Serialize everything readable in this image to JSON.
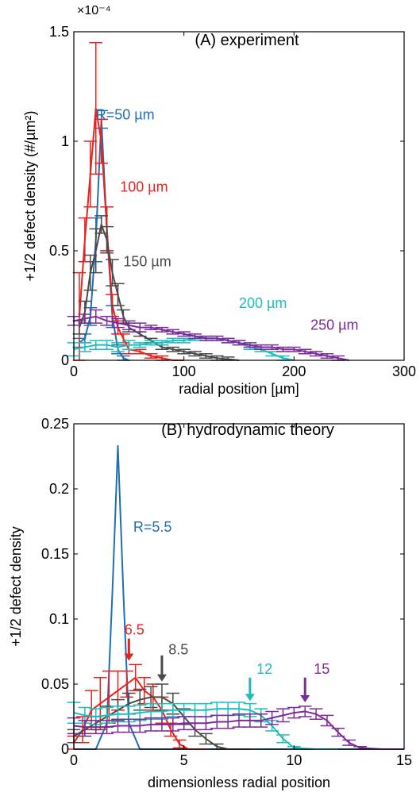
{
  "chart_data": [
    {
      "type": "line",
      "title": "(A) experiment",
      "xlabel": "radial position [µm]",
      "ylabel": "+1/2 defect density (#/µm²)",
      "exponent": "×10⁻⁴",
      "xlim": [
        0,
        300
      ],
      "ylim": [
        0,
        1.5
      ],
      "xticks": [
        0,
        100,
        200,
        300
      ],
      "xtick_labels": [
        "0",
        "100",
        "200",
        "300"
      ],
      "yticks": [
        0,
        0.5,
        1,
        1.5
      ],
      "ytick_labels": [
        "0",
        "0.5",
        "1",
        "1.5"
      ],
      "grid": false,
      "error_bars": true,
      "series": [
        {
          "name": "R=50 µm",
          "color": "#1f6fb5",
          "x": [
            5,
            10,
            15,
            20,
            25,
            30,
            35,
            40,
            45,
            50
          ],
          "y": [
            0.08,
            0.1,
            0.2,
            0.55,
            1.1,
            0.6,
            0.2,
            0.05,
            0.01,
            0
          ],
          "err": [
            0.02,
            0.02,
            0.04,
            0.1,
            0.04,
            0.1,
            0.05,
            0.02,
            0.01,
            0
          ]
        },
        {
          "name": "100 µm",
          "color": "#e8221e",
          "x": [
            5,
            10,
            15,
            20,
            25,
            30,
            35,
            40,
            45,
            50,
            60,
            70,
            80,
            90,
            100
          ],
          "y": [
            0.2,
            0.55,
            0.85,
            1.15,
            1.0,
            0.6,
            0.25,
            0.15,
            0.1,
            0.05,
            0.04,
            0.02,
            0.01,
            0,
            0
          ],
          "err": [
            0.2,
            0.1,
            0.15,
            0.3,
            0.1,
            0.1,
            0.05,
            0.03,
            0.02,
            0.02,
            0.01,
            0.01,
            0.01,
            0,
            0
          ]
        },
        {
          "name": "150 µm",
          "color": "#4a4a4a",
          "x": [
            5,
            10,
            15,
            20,
            25,
            30,
            35,
            40,
            45,
            50,
            60,
            70,
            80,
            90,
            100,
            110,
            120,
            130,
            140,
            150
          ],
          "y": [
            0.15,
            0.22,
            0.4,
            0.5,
            0.62,
            0.55,
            0.4,
            0.3,
            0.2,
            0.15,
            0.12,
            0.09,
            0.06,
            0.05,
            0.04,
            0.03,
            0.02,
            0.01,
            0.005,
            0
          ],
          "err": [
            0.03,
            0.05,
            0.08,
            0.1,
            0.04,
            0.06,
            0.06,
            0.05,
            0.03,
            0.02,
            0.01,
            0.01,
            0.01,
            0.01,
            0.01,
            0.01,
            0.01,
            0.01,
            0.01,
            0
          ]
        },
        {
          "name": "200 µm",
          "color": "#1fbcbc",
          "x": [
            0,
            10,
            20,
            30,
            40,
            50,
            60,
            70,
            80,
            90,
            100,
            110,
            120,
            130,
            140,
            150,
            160,
            170,
            180,
            190,
            200
          ],
          "y": [
            0.05,
            0.06,
            0.07,
            0.07,
            0.06,
            0.07,
            0.07,
            0.08,
            0.08,
            0.09,
            0.09,
            0.1,
            0.1,
            0.1,
            0.09,
            0.08,
            0.06,
            0.05,
            0.03,
            0.01,
            0
          ],
          "err": [
            0.03,
            0.02,
            0.02,
            0.02,
            0.02,
            0.02,
            0.01,
            0.01,
            0.01,
            0.01,
            0.01,
            0.01,
            0.01,
            0.01,
            0.01,
            0.01,
            0.01,
            0.01,
            0.01,
            0.01,
            0
          ]
        },
        {
          "name": "250 µm",
          "color": "#7b2b9a",
          "x": [
            0,
            10,
            20,
            30,
            40,
            50,
            60,
            70,
            80,
            90,
            100,
            110,
            120,
            130,
            140,
            150,
            160,
            170,
            180,
            190,
            200,
            210,
            220,
            230,
            240,
            250
          ],
          "y": [
            0.18,
            0.19,
            0.2,
            0.18,
            0.17,
            0.16,
            0.15,
            0.15,
            0.14,
            0.13,
            0.12,
            0.11,
            0.1,
            0.1,
            0.09,
            0.08,
            0.07,
            0.06,
            0.06,
            0.05,
            0.05,
            0.04,
            0.03,
            0.02,
            0.01,
            0
          ],
          "err": [
            0.02,
            0.02,
            0.03,
            0.02,
            0.02,
            0.02,
            0.02,
            0.01,
            0.01,
            0.01,
            0.01,
            0.01,
            0.01,
            0.01,
            0.01,
            0.01,
            0.01,
            0.01,
            0.01,
            0.01,
            0.01,
            0.01,
            0.01,
            0.01,
            0.01,
            0
          ]
        }
      ],
      "labels": [
        {
          "text": "R=50 µm",
          "color": "#1f6fb5",
          "x": 20,
          "y": 1.1
        },
        {
          "text": "100 µm",
          "color": "#e8221e",
          "x": 42,
          "y": 0.77
        },
        {
          "text": "150 µm",
          "color": "#4a4a4a",
          "x": 45,
          "y": 0.43
        },
        {
          "text": "200 µm",
          "color": "#1fbcbc",
          "x": 150,
          "y": 0.24
        },
        {
          "text": "250 µm",
          "color": "#7b2b9a",
          "x": 215,
          "y": 0.14
        }
      ]
    },
    {
      "type": "line",
      "title": "(B) hydrodynamic theory",
      "xlabel": "dimensionless radial position",
      "ylabel": "+1/2 defect density",
      "xlim": [
        0,
        15
      ],
      "ylim": [
        0,
        0.25
      ],
      "xticks": [
        0,
        5,
        10,
        15
      ],
      "xtick_labels": [
        "0",
        "5",
        "10",
        "15"
      ],
      "yticks": [
        0,
        0.05,
        0.1,
        0.15,
        0.2,
        0.25
      ],
      "ytick_labels": [
        "0",
        "0.05",
        "0.1",
        "0.15",
        "0.2",
        "0.25"
      ],
      "grid": false,
      "error_bars": true,
      "series": [
        {
          "name": "R=5.5",
          "color": "#1f6fb5",
          "x": [
            0,
            1.0,
            1.5,
            1.75,
            2.0,
            2.25,
            2.5,
            3.0,
            4.0,
            15
          ],
          "y": [
            0,
            0,
            0.02,
            0.12,
            0.233,
            0.12,
            0.02,
            0,
            0,
            0
          ],
          "err": []
        },
        {
          "name": "6.5",
          "color": "#e8221e",
          "x": [
            0.0,
            0.4,
            0.8,
            1.2,
            1.6,
            2.0,
            2.4,
            2.8,
            3.2,
            3.6,
            4.0,
            4.4,
            4.8,
            5.2,
            6.0
          ],
          "y": [
            0.005,
            0.015,
            0.03,
            0.035,
            0.04,
            0.045,
            0.05,
            0.055,
            0.045,
            0.04,
            0.03,
            0.015,
            0.004,
            0,
            0
          ],
          "err": [
            0.005,
            0.01,
            0.015,
            0.02,
            0.02,
            0.015,
            0.01,
            0.01,
            0.01,
            0.01,
            0.01,
            0.005,
            0.003,
            0,
            0
          ]
        },
        {
          "name": "8.5",
          "color": "#4a4a4a",
          "x": [
            0.0,
            0.5,
            1.0,
            1.5,
            2.0,
            2.5,
            3.0,
            3.5,
            4.0,
            4.5,
            5.0,
            5.5,
            6.0,
            6.5,
            7.0,
            8.0
          ],
          "y": [
            0.01,
            0.015,
            0.02,
            0.025,
            0.03,
            0.035,
            0.038,
            0.04,
            0.04,
            0.035,
            0.025,
            0.015,
            0.008,
            0.002,
            0,
            0
          ],
          "err": [
            0.005,
            0.005,
            0.005,
            0.008,
            0.008,
            0.008,
            0.008,
            0.008,
            0.01,
            0.008,
            0.006,
            0.005,
            0.004,
            0.002,
            0,
            0
          ]
        },
        {
          "name": "12",
          "color": "#1fbcbc",
          "x": [
            0,
            0.5,
            1,
            1.5,
            2,
            2.5,
            3,
            3.5,
            4,
            4.5,
            5,
            5.5,
            6,
            6.5,
            7,
            7.5,
            8,
            8.5,
            9,
            9.5,
            10,
            11,
            12
          ],
          "y": [
            0.028,
            0.026,
            0.025,
            0.026,
            0.027,
            0.027,
            0.028,
            0.029,
            0.029,
            0.03,
            0.03,
            0.03,
            0.03,
            0.031,
            0.031,
            0.031,
            0.03,
            0.026,
            0.018,
            0.008,
            0.001,
            0,
            0
          ],
          "err": [
            0.008,
            0.006,
            0.006,
            0.006,
            0.006,
            0.006,
            0.006,
            0.006,
            0.006,
            0.005,
            0.005,
            0.005,
            0.005,
            0.005,
            0.005,
            0.005,
            0.005,
            0.005,
            0.004,
            0.003,
            0.001,
            0,
            0
          ]
        },
        {
          "name": "15",
          "color": "#7b2b9a",
          "x": [
            0,
            0.5,
            1,
            1.5,
            2,
            2.5,
            3,
            3.5,
            4,
            4.5,
            5,
            5.5,
            6,
            6.5,
            7,
            7.5,
            8,
            8.5,
            9,
            9.5,
            10,
            10.5,
            11,
            11.5,
            12,
            12.5,
            13,
            14,
            15
          ],
          "y": [
            0.018,
            0.017,
            0.017,
            0.017,
            0.018,
            0.018,
            0.018,
            0.019,
            0.019,
            0.019,
            0.02,
            0.02,
            0.02,
            0.021,
            0.021,
            0.022,
            0.022,
            0.022,
            0.024,
            0.026,
            0.028,
            0.029,
            0.027,
            0.022,
            0.013,
            0.005,
            0.001,
            0,
            0
          ],
          "err": [
            0.006,
            0.005,
            0.005,
            0.005,
            0.005,
            0.005,
            0.005,
            0.005,
            0.005,
            0.005,
            0.005,
            0.005,
            0.005,
            0.005,
            0.005,
            0.005,
            0.005,
            0.005,
            0.005,
            0.005,
            0.004,
            0.004,
            0.004,
            0.004,
            0.003,
            0.002,
            0.001,
            0,
            0
          ]
        }
      ],
      "labels": [
        {
          "text": "R=5.5",
          "color": "#1f6fb5",
          "x": 2.7,
          "y": 0.167
        },
        {
          "text": "6.5",
          "color": "#e8221e",
          "x": 2.3,
          "y": 0.088
        },
        {
          "text": "8.5",
          "color": "#4a4a4a",
          "x": 4.3,
          "y": 0.073
        },
        {
          "text": "12",
          "color": "#1fbcbc",
          "x": 8.3,
          "y": 0.058
        },
        {
          "text": "15",
          "color": "#7b2b9a",
          "x": 10.9,
          "y": 0.058
        }
      ],
      "arrows": [
        {
          "color": "#e8221e",
          "x": 2.5,
          "y_from": 0.085,
          "y_to": 0.068
        },
        {
          "color": "#4a4a4a",
          "x": 4.0,
          "y_from": 0.072,
          "y_to": 0.052
        },
        {
          "color": "#1fbcbc",
          "x": 8.0,
          "y_from": 0.055,
          "y_to": 0.037
        },
        {
          "color": "#7b2b9a",
          "x": 10.5,
          "y_from": 0.055,
          "y_to": 0.036
        }
      ]
    }
  ]
}
